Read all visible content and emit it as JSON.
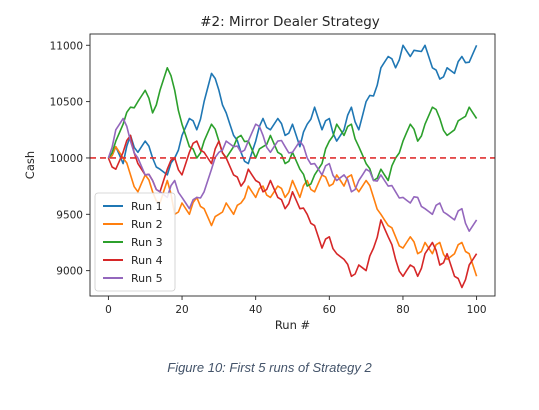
{
  "caption": "Figure 10: First 5 runs of Strategy 2",
  "chart_data": {
    "type": "line",
    "title": "#2: Mirror Dealer Strategy",
    "xlabel": "Run #",
    "ylabel": "Cash",
    "xlim": [
      -5,
      105
    ],
    "ylim": [
      8775,
      11100
    ],
    "xticks": [
      0,
      20,
      40,
      60,
      80,
      100
    ],
    "yticks": [
      9000,
      9500,
      10000,
      10500,
      11000
    ],
    "grid": false,
    "legend_position": "lower-left",
    "reference_line": {
      "y": 10000,
      "style": "dashed",
      "color": "#e03030"
    },
    "colors": {
      "run1": "#1f77b4",
      "run2": "#ff7f0e",
      "run3": "#2ca02c",
      "run4": "#d62728",
      "run5": "#9467bd"
    },
    "series": [
      {
        "name": "Run 1",
        "color": "#1f77b4",
        "keyframes": [
          [
            0,
            10000
          ],
          [
            2,
            10100
          ],
          [
            4,
            9950
          ],
          [
            6,
            10200
          ],
          [
            8,
            10050
          ],
          [
            10,
            10150
          ],
          [
            12,
            10000
          ],
          [
            14,
            9900
          ],
          [
            16,
            9850
          ],
          [
            18,
            10000
          ],
          [
            20,
            10200
          ],
          [
            22,
            10350
          ],
          [
            24,
            10250
          ],
          [
            26,
            10500
          ],
          [
            28,
            10750
          ],
          [
            30,
            10600
          ],
          [
            32,
            10400
          ],
          [
            34,
            10200
          ],
          [
            36,
            10050
          ],
          [
            38,
            9950
          ],
          [
            40,
            10150
          ],
          [
            42,
            10350
          ],
          [
            44,
            10250
          ],
          [
            46,
            10350
          ],
          [
            48,
            10200
          ],
          [
            50,
            10300
          ],
          [
            52,
            10100
          ],
          [
            54,
            10300
          ],
          [
            56,
            10450
          ],
          [
            58,
            10250
          ],
          [
            60,
            10350
          ],
          [
            62,
            10150
          ],
          [
            64,
            10250
          ],
          [
            66,
            10450
          ],
          [
            68,
            10250
          ],
          [
            70,
            10500
          ],
          [
            72,
            10550
          ],
          [
            74,
            10800
          ],
          [
            76,
            10900
          ],
          [
            78,
            10800
          ],
          [
            80,
            11000
          ],
          [
            82,
            10900
          ],
          [
            84,
            10950
          ],
          [
            86,
            11000
          ],
          [
            88,
            10800
          ],
          [
            90,
            10700
          ],
          [
            92,
            10800
          ],
          [
            94,
            10750
          ],
          [
            96,
            10900
          ],
          [
            98,
            10850
          ],
          [
            100,
            11000
          ]
        ]
      },
      {
        "name": "Run 2",
        "color": "#ff7f0e",
        "keyframes": [
          [
            0,
            10000
          ],
          [
            2,
            10100
          ],
          [
            4,
            10000
          ],
          [
            6,
            9850
          ],
          [
            8,
            9700
          ],
          [
            10,
            9850
          ],
          [
            12,
            9700
          ],
          [
            14,
            9600
          ],
          [
            16,
            9800
          ],
          [
            18,
            9500
          ],
          [
            20,
            9600
          ],
          [
            22,
            9500
          ],
          [
            24,
            9650
          ],
          [
            26,
            9550
          ],
          [
            28,
            9400
          ],
          [
            30,
            9500
          ],
          [
            32,
            9600
          ],
          [
            34,
            9500
          ],
          [
            36,
            9600
          ],
          [
            38,
            9750
          ],
          [
            40,
            9650
          ],
          [
            42,
            9750
          ],
          [
            44,
            9650
          ],
          [
            46,
            9750
          ],
          [
            48,
            9650
          ],
          [
            50,
            9800
          ],
          [
            52,
            9650
          ],
          [
            54,
            9800
          ],
          [
            56,
            9700
          ],
          [
            58,
            9850
          ],
          [
            60,
            9750
          ],
          [
            62,
            9850
          ],
          [
            64,
            9750
          ],
          [
            66,
            9850
          ],
          [
            68,
            9700
          ],
          [
            70,
            9800
          ],
          [
            72,
            9650
          ],
          [
            74,
            9500
          ],
          [
            76,
            9400
          ],
          [
            78,
            9300
          ],
          [
            80,
            9200
          ],
          [
            82,
            9300
          ],
          [
            84,
            9150
          ],
          [
            86,
            9250
          ],
          [
            88,
            9150
          ],
          [
            90,
            9250
          ],
          [
            92,
            9100
          ],
          [
            94,
            9150
          ],
          [
            96,
            9250
          ],
          [
            98,
            9150
          ],
          [
            100,
            8950
          ]
        ]
      },
      {
        "name": "Run 3",
        "color": "#2ca02c",
        "keyframes": [
          [
            0,
            10000
          ],
          [
            2,
            10150
          ],
          [
            4,
            10300
          ],
          [
            6,
            10450
          ],
          [
            8,
            10500
          ],
          [
            10,
            10600
          ],
          [
            12,
            10400
          ],
          [
            14,
            10600
          ],
          [
            16,
            10800
          ],
          [
            18,
            10600
          ],
          [
            20,
            10300
          ],
          [
            22,
            10100
          ],
          [
            24,
            10000
          ],
          [
            26,
            10150
          ],
          [
            28,
            10300
          ],
          [
            30,
            10150
          ],
          [
            32,
            10000
          ],
          [
            34,
            10100
          ],
          [
            36,
            10200
          ],
          [
            38,
            10150
          ],
          [
            40,
            10000
          ],
          [
            42,
            10100
          ],
          [
            44,
            10200
          ],
          [
            46,
            10050
          ],
          [
            48,
            9950
          ],
          [
            50,
            10050
          ],
          [
            52,
            9900
          ],
          [
            54,
            9750
          ],
          [
            56,
            9850
          ],
          [
            58,
            9950
          ],
          [
            60,
            10150
          ],
          [
            62,
            10300
          ],
          [
            64,
            10200
          ],
          [
            66,
            10300
          ],
          [
            68,
            10100
          ],
          [
            70,
            9950
          ],
          [
            72,
            9800
          ],
          [
            74,
            9900
          ],
          [
            76,
            9800
          ],
          [
            78,
            10000
          ],
          [
            80,
            10150
          ],
          [
            82,
            10300
          ],
          [
            84,
            10150
          ],
          [
            86,
            10300
          ],
          [
            88,
            10450
          ],
          [
            90,
            10350
          ],
          [
            92,
            10200
          ],
          [
            94,
            10250
          ],
          [
            96,
            10350
          ],
          [
            98,
            10450
          ],
          [
            100,
            10350
          ]
        ]
      },
      {
        "name": "Run 4",
        "color": "#d62728",
        "keyframes": [
          [
            0,
            10000
          ],
          [
            2,
            9900
          ],
          [
            4,
            10050
          ],
          [
            6,
            10200
          ],
          [
            8,
            9950
          ],
          [
            10,
            9850
          ],
          [
            12,
            9800
          ],
          [
            14,
            9700
          ],
          [
            16,
            9900
          ],
          [
            18,
            10000
          ],
          [
            20,
            9850
          ],
          [
            22,
            10050
          ],
          [
            24,
            10150
          ],
          [
            26,
            10050
          ],
          [
            28,
            9950
          ],
          [
            30,
            10150
          ],
          [
            32,
            10000
          ],
          [
            34,
            9850
          ],
          [
            36,
            9750
          ],
          [
            38,
            9900
          ],
          [
            40,
            9800
          ],
          [
            42,
            9700
          ],
          [
            44,
            9800
          ],
          [
            46,
            9650
          ],
          [
            48,
            9550
          ],
          [
            50,
            9700
          ],
          [
            52,
            9550
          ],
          [
            54,
            9500
          ],
          [
            56,
            9400
          ],
          [
            58,
            9200
          ],
          [
            60,
            9300
          ],
          [
            62,
            9150
          ],
          [
            64,
            9100
          ],
          [
            66,
            8950
          ],
          [
            68,
            9050
          ],
          [
            70,
            9000
          ],
          [
            72,
            9200
          ],
          [
            74,
            9450
          ],
          [
            76,
            9300
          ],
          [
            78,
            9100
          ],
          [
            80,
            8950
          ],
          [
            82,
            9050
          ],
          [
            84,
            8950
          ],
          [
            86,
            9150
          ],
          [
            88,
            9250
          ],
          [
            90,
            9050
          ],
          [
            92,
            9150
          ],
          [
            94,
            8950
          ],
          [
            96,
            8850
          ],
          [
            98,
            9050
          ],
          [
            100,
            9150
          ]
        ]
      },
      {
        "name": "Run 5",
        "color": "#9467bd",
        "keyframes": [
          [
            0,
            10000
          ],
          [
            2,
            10250
          ],
          [
            4,
            10350
          ],
          [
            6,
            10150
          ],
          [
            8,
            10000
          ],
          [
            10,
            9850
          ],
          [
            12,
            9800
          ],
          [
            14,
            9700
          ],
          [
            16,
            9650
          ],
          [
            18,
            9800
          ],
          [
            20,
            9650
          ],
          [
            22,
            9550
          ],
          [
            24,
            9650
          ],
          [
            26,
            9700
          ],
          [
            28,
            9900
          ],
          [
            30,
            10050
          ],
          [
            32,
            10150
          ],
          [
            34,
            10100
          ],
          [
            36,
            10050
          ],
          [
            38,
            10150
          ],
          [
            40,
            10300
          ],
          [
            42,
            10200
          ],
          [
            44,
            10050
          ],
          [
            46,
            10150
          ],
          [
            48,
            10100
          ],
          [
            50,
            10050
          ],
          [
            52,
            10150
          ],
          [
            54,
            10000
          ],
          [
            56,
            9950
          ],
          [
            58,
            9850
          ],
          [
            60,
            9950
          ],
          [
            62,
            9800
          ],
          [
            64,
            9850
          ],
          [
            66,
            9700
          ],
          [
            68,
            9800
          ],
          [
            70,
            9900
          ],
          [
            72,
            9800
          ],
          [
            74,
            9850
          ],
          [
            76,
            9750
          ],
          [
            78,
            9700
          ],
          [
            80,
            9650
          ],
          [
            82,
            9600
          ],
          [
            84,
            9650
          ],
          [
            86,
            9550
          ],
          [
            88,
            9500
          ],
          [
            90,
            9600
          ],
          [
            92,
            9500
          ],
          [
            94,
            9450
          ],
          [
            96,
            9550
          ],
          [
            98,
            9350
          ],
          [
            100,
            9450
          ]
        ]
      }
    ]
  }
}
